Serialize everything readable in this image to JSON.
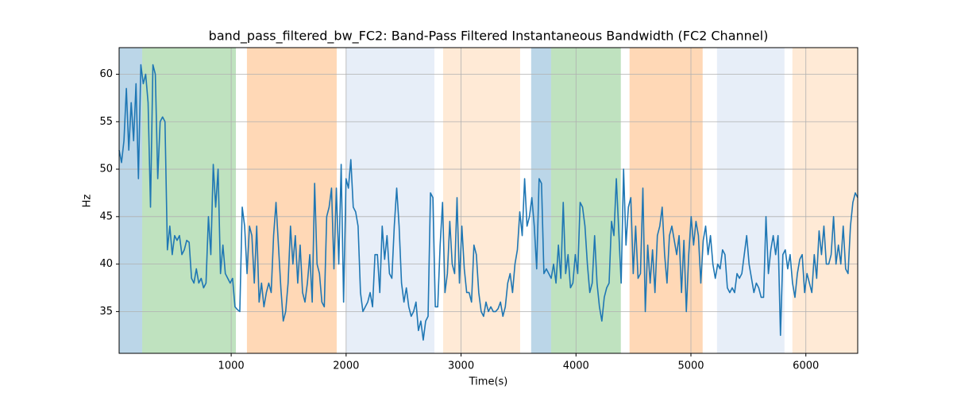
{
  "chart_data": {
    "type": "line",
    "title": "band_pass_filtered_bw_FC2: Band-Pass Filtered Instantaneous Bandwidth (FC2 Channel)",
    "xlabel": "Time(s)",
    "ylabel": "Hz",
    "xlim": [
      25,
      6451
    ],
    "ylim": [
      30.6,
      62.8
    ],
    "xticks": [
      1000,
      2000,
      3000,
      4000,
      5000,
      6000
    ],
    "yticks": [
      35,
      40,
      45,
      50,
      55,
      60
    ],
    "grid": true,
    "span_alpha": 0.3,
    "spans": [
      {
        "start": 25,
        "end": 226,
        "color": "#1f77b4"
      },
      {
        "start": 226,
        "end": 1041,
        "color": "#2ca02c"
      },
      {
        "start": 1137,
        "end": 1918,
        "color": "#ff7f0e"
      },
      {
        "start": 2001,
        "end": 2768,
        "color": "#aec7e8"
      },
      {
        "start": 2844,
        "end": 3514,
        "color": "#ffbb78"
      },
      {
        "start": 3610,
        "end": 3783,
        "color": "#1f77b4"
      },
      {
        "start": 3783,
        "end": 4390,
        "color": "#2ca02c"
      },
      {
        "start": 4466,
        "end": 5102,
        "color": "#ff7f0e"
      },
      {
        "start": 5227,
        "end": 5814,
        "color": "#aec7e8"
      },
      {
        "start": 5883,
        "end": 6451,
        "color": "#ffbb78"
      }
    ],
    "x": [
      25,
      46,
      67,
      88,
      109,
      130,
      151,
      172,
      193,
      214,
      235,
      256,
      277,
      298,
      319,
      340,
      361,
      382,
      403,
      424,
      445,
      466,
      487,
      508,
      529,
      550,
      571,
      592,
      613,
      634,
      655,
      676,
      697,
      718,
      739,
      760,
      781,
      802,
      823,
      844,
      865,
      886,
      907,
      928,
      949,
      970,
      991,
      1012,
      1033,
      1054,
      1075,
      1096,
      1117,
      1138,
      1159,
      1180,
      1201,
      1222,
      1243,
      1264,
      1285,
      1306,
      1327,
      1348,
      1369,
      1390,
      1411,
      1432,
      1453,
      1474,
      1495,
      1516,
      1537,
      1558,
      1579,
      1600,
      1621,
      1642,
      1663,
      1684,
      1705,
      1726,
      1747,
      1768,
      1789,
      1810,
      1831,
      1852,
      1873,
      1894,
      1915,
      1936,
      1957,
      1978,
      1999,
      2020,
      2041,
      2062,
      2083,
      2104,
      2125,
      2146,
      2167,
      2188,
      2209,
      2230,
      2251,
      2272,
      2293,
      2314,
      2335,
      2356,
      2377,
      2398,
      2419,
      2440,
      2461,
      2482,
      2503,
      2524,
      2545,
      2566,
      2587,
      2608,
      2629,
      2650,
      2671,
      2692,
      2713,
      2734,
      2755,
      2776,
      2797,
      2818,
      2839,
      2860,
      2881,
      2902,
      2923,
      2944,
      2965,
      2986,
      3007,
      3028,
      3049,
      3070,
      3091,
      3112,
      3133,
      3154,
      3175,
      3196,
      3217,
      3238,
      3259,
      3280,
      3301,
      3322,
      3343,
      3364,
      3385,
      3406,
      3427,
      3448,
      3469,
      3490,
      3511,
      3532,
      3553,
      3574,
      3595,
      3616,
      3637,
      3658,
      3679,
      3700,
      3721,
      3742,
      3763,
      3784,
      3805,
      3826,
      3847,
      3868,
      3889,
      3910,
      3931,
      3952,
      3973,
      3994,
      4015,
      4036,
      4057,
      4078,
      4099,
      4120,
      4141,
      4162,
      4183,
      4204,
      4225,
      4246,
      4267,
      4288,
      4309,
      4330,
      4351,
      4372,
      4393,
      4414,
      4435,
      4456,
      4477,
      4498,
      4519,
      4540,
      4561,
      4582,
      4603,
      4624,
      4645,
      4666,
      4687,
      4708,
      4729,
      4750,
      4771,
      4792,
      4813,
      4834,
      4855,
      4876,
      4897,
      4918,
      4939,
      4960,
      4981,
      5002,
      5023,
      5044,
      5065,
      5086,
      5107,
      5128,
      5149,
      5170,
      5191,
      5212,
      5233,
      5254,
      5275,
      5296,
      5317,
      5338,
      5359,
      5380,
      5401,
      5422,
      5443,
      5464,
      5485,
      5506,
      5527,
      5548,
      5569,
      5590,
      5611,
      5632,
      5653,
      5674,
      5695,
      5716,
      5737,
      5758,
      5779,
      5800,
      5821,
      5842,
      5863,
      5884,
      5905,
      5926,
      5947,
      5968,
      5989,
      6010,
      6031,
      6052,
      6073,
      6094,
      6115,
      6136,
      6157,
      6178,
      6199,
      6220,
      6241,
      6262,
      6283,
      6304,
      6325,
      6346,
      6367,
      6388,
      6409,
      6430,
      6451
    ],
    "series": [
      {
        "name": "band_pass_filtered_bw_FC2",
        "color": "#1f77b4",
        "values": [
          52,
          50.7,
          53,
          58.5,
          52,
          57,
          53,
          59,
          49,
          61,
          59,
          60,
          57,
          46,
          61,
          60,
          49,
          55,
          55.5,
          55,
          41.5,
          44,
          41,
          43,
          42.5,
          43,
          41,
          41.5,
          42.5,
          42.3,
          38.5,
          38,
          39.5,
          38,
          38.5,
          37.5,
          38,
          45,
          41,
          50.5,
          46,
          50,
          39,
          42,
          39,
          38.5,
          38,
          38.5,
          35.5,
          35.2,
          35,
          46,
          44,
          39,
          44,
          43,
          38,
          44,
          36,
          38,
          35.5,
          37,
          38,
          37,
          43,
          46.5,
          42,
          37.5,
          34,
          35,
          38,
          44,
          40,
          43,
          38,
          42,
          37,
          36,
          38,
          41,
          36,
          48.5,
          40,
          39,
          36,
          35.5,
          45,
          46,
          48,
          39.5,
          48,
          40,
          50.5,
          36,
          49,
          48,
          51,
          46,
          45.5,
          44,
          37,
          35,
          35.5,
          36,
          37,
          35.5,
          41,
          41,
          37,
          44,
          40.5,
          43,
          39,
          38.5,
          44,
          48,
          44,
          38,
          36,
          37.5,
          35.5,
          34.5,
          35,
          36,
          33,
          34,
          32,
          34,
          34.5,
          47.5,
          47,
          35.5,
          35.5,
          42,
          46.5,
          37,
          39,
          44.5,
          40,
          39,
          47,
          38,
          44,
          39.5,
          37,
          37,
          36,
          42,
          41,
          37,
          35,
          34.5,
          36,
          35,
          35.5,
          35,
          35,
          35.3,
          36,
          34.5,
          35.5,
          38,
          39,
          37,
          40,
          41.5,
          45.5,
          43,
          49,
          44,
          45,
          47,
          44,
          39.5,
          49,
          48.5,
          39,
          39.5,
          39,
          38.5,
          40,
          38,
          42,
          38.5,
          46.5,
          39,
          41,
          37.5,
          38,
          41,
          39,
          46.5,
          46,
          44,
          40,
          37,
          38,
          43,
          38,
          35.5,
          34,
          36.5,
          37.5,
          38,
          44.5,
          43,
          49,
          43.5,
          38,
          50,
          42,
          46,
          47,
          39,
          44,
          38.5,
          39,
          48,
          35,
          42,
          38,
          41.5,
          37,
          43,
          44,
          46,
          41,
          38,
          43,
          44,
          42.5,
          41,
          43,
          37,
          42.5,
          35,
          41,
          45,
          42,
          44.5,
          43,
          38,
          42.5,
          44,
          41,
          43,
          40,
          38.5,
          40,
          39.5,
          41.5,
          41,
          37.5,
          37,
          37.5,
          37,
          39,
          38.5,
          39,
          41,
          43,
          40,
          38.5,
          37,
          38,
          37.5,
          36.5,
          36.5,
          45,
          39,
          41.5,
          43,
          41,
          43,
          32.5,
          41,
          41.5,
          39.5,
          41,
          38,
          36.5,
          39,
          40.5,
          41,
          37,
          39,
          38,
          37,
          41,
          38.5,
          43.5,
          41,
          44,
          40,
          40,
          41,
          45,
          40,
          42,
          40,
          44,
          39.5,
          39,
          44,
          46.5,
          47.5,
          47
        ]
      }
    ]
  }
}
